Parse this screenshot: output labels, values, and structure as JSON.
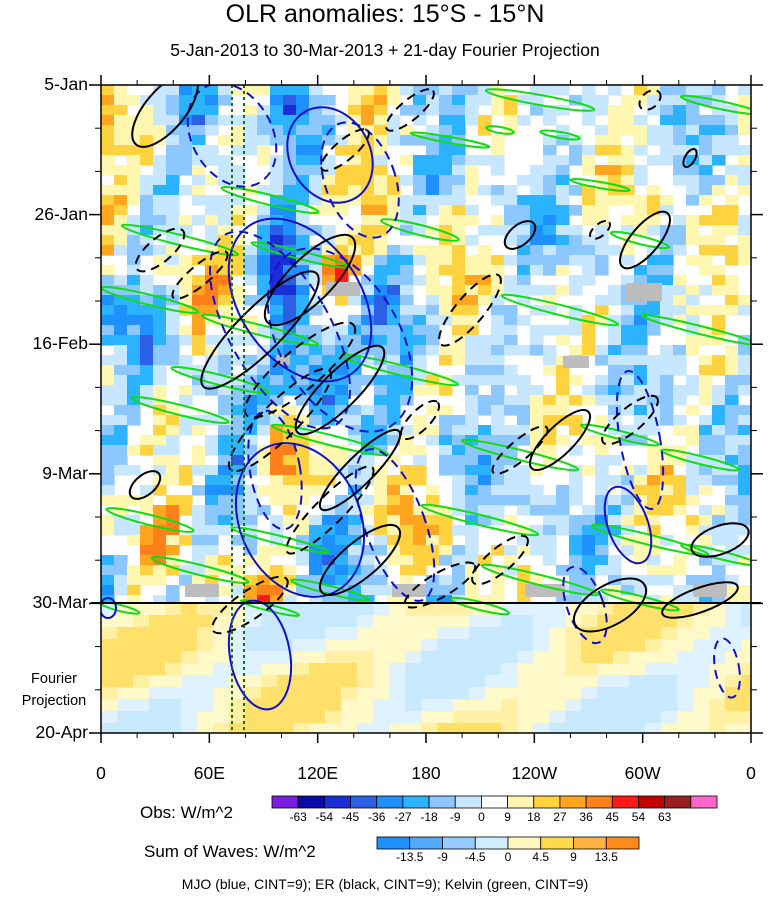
{
  "chart_data": {
    "type": "heatmap",
    "title": "OLR anomalies: 15°S - 15°N",
    "subtitle": "5-Jan-2013 to 30-Mar-2013 + 21-day Fourier Projection",
    "x_axis": {
      "quantity": "longitude",
      "range": [
        "0",
        "0"
      ],
      "tick_labels": [
        "0",
        "60E",
        "120E",
        "180",
        "120W",
        "60W",
        "0"
      ]
    },
    "y_axis": {
      "quantity": "time",
      "range": [
        "5-Jan-2013",
        "20-Apr-2013"
      ],
      "tick_labels": [
        "5-Jan",
        "26-Jan",
        "16-Feb",
        "9-Mar",
        "30-Mar",
        "20-Apr"
      ],
      "reversed": true
    },
    "forecast_label": "Fourier\nProjection",
    "forecast_start": "30-Mar",
    "obs_colorbar": {
      "label": "Obs: W/m^2",
      "levels": [
        "-63",
        "-54",
        "-45",
        "-36",
        "-27",
        "-18",
        "-9",
        "0",
        "9",
        "18",
        "27",
        "36",
        "45",
        "54",
        "63"
      ],
      "colors": [
        "#7a1fe0",
        "#0a0aa8",
        "#1a2ed8",
        "#2a5fe6",
        "#1e90ff",
        "#2bb3ff",
        "#8cc8ff",
        "#c6e7ff",
        "#ffffff",
        "#fff7b0",
        "#ffd23f",
        "#ffa51f",
        "#ff7f1a",
        "#ff1a1a",
        "#c40000",
        "#9a2020",
        "#ff66cc"
      ]
    },
    "waves_colorbar": {
      "label": "Sum of Waves: W/m^2",
      "levels": [
        "-13.5",
        "-9",
        "-4.5",
        "0",
        "4.5",
        "9",
        "13.5"
      ],
      "colors": [
        "#1e90ff",
        "#52aaff",
        "#97cbff",
        "#d2ecff",
        "#fff6bd",
        "#ffd94a",
        "#ffb23f",
        "#ff8c1a"
      ]
    },
    "contours_legend": "MJO (blue, CINT=9); ER (black, CINT=9); Kelvin (green, CINT=9)",
    "series": [
      {
        "name": "MJO",
        "color": "#1010cc"
      },
      {
        "name": "ER",
        "color": "#000000"
      },
      {
        "name": "Kelvin",
        "color": "#11dd11"
      }
    ],
    "reference_lines": [
      {
        "color": "#0a7a0a",
        "style": "dashed"
      },
      {
        "color": "#0a7a0a",
        "style": "dashed"
      }
    ],
    "missing_data_color": "#bdbdbd"
  }
}
